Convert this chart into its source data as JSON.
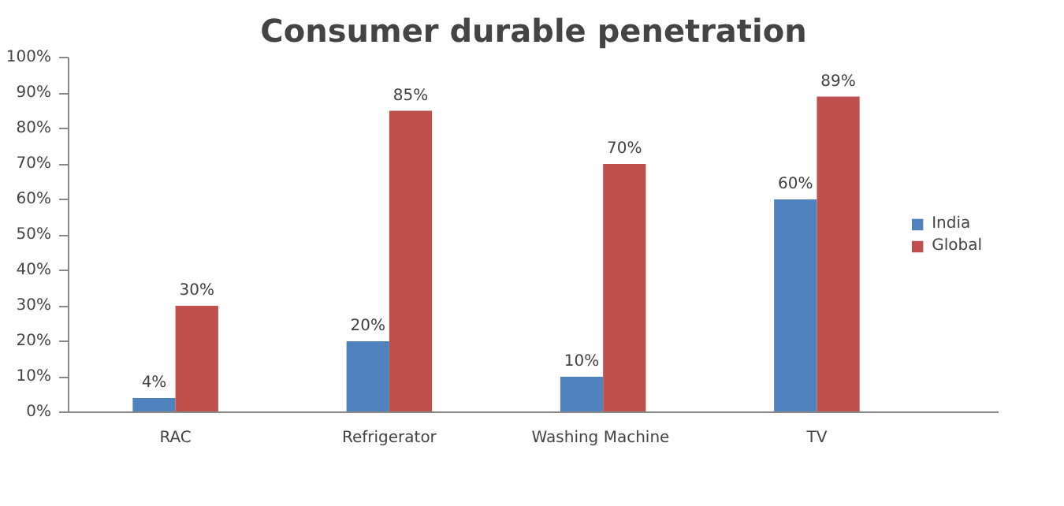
{
  "chart_data": {
    "type": "bar",
    "title": "Consumer durable penetration",
    "categories": [
      "RAC",
      "Refrigerator",
      "Washing  Machine",
      "TV"
    ],
    "series": [
      {
        "name": "India",
        "color": "#4f81bd",
        "values": [
          4,
          20,
          10,
          60
        ],
        "value_labels": [
          "4%",
          "20%",
          "10%",
          "60%"
        ]
      },
      {
        "name": "Global",
        "color": "#c0504d",
        "values": [
          30,
          85,
          70,
          89
        ],
        "value_labels": [
          "30%",
          "85%",
          "70%",
          "89%"
        ]
      }
    ],
    "ylim": [
      0,
      100
    ],
    "yticks": [
      {
        "value": 0,
        "label": "0%"
      },
      {
        "value": 10,
        "label": "10%"
      },
      {
        "value": 20,
        "label": "20%"
      },
      {
        "value": 30,
        "label": "30%"
      },
      {
        "value": 40,
        "label": "40%"
      },
      {
        "value": 50,
        "label": "50%"
      },
      {
        "value": 60,
        "label": "60%"
      },
      {
        "value": 70,
        "label": "70%"
      },
      {
        "value": 80,
        "label": "80%"
      },
      {
        "value": 90,
        "label": "90%"
      },
      {
        "value": 100,
        "label": "100%"
      }
    ],
    "grid": false,
    "legend": "right"
  }
}
